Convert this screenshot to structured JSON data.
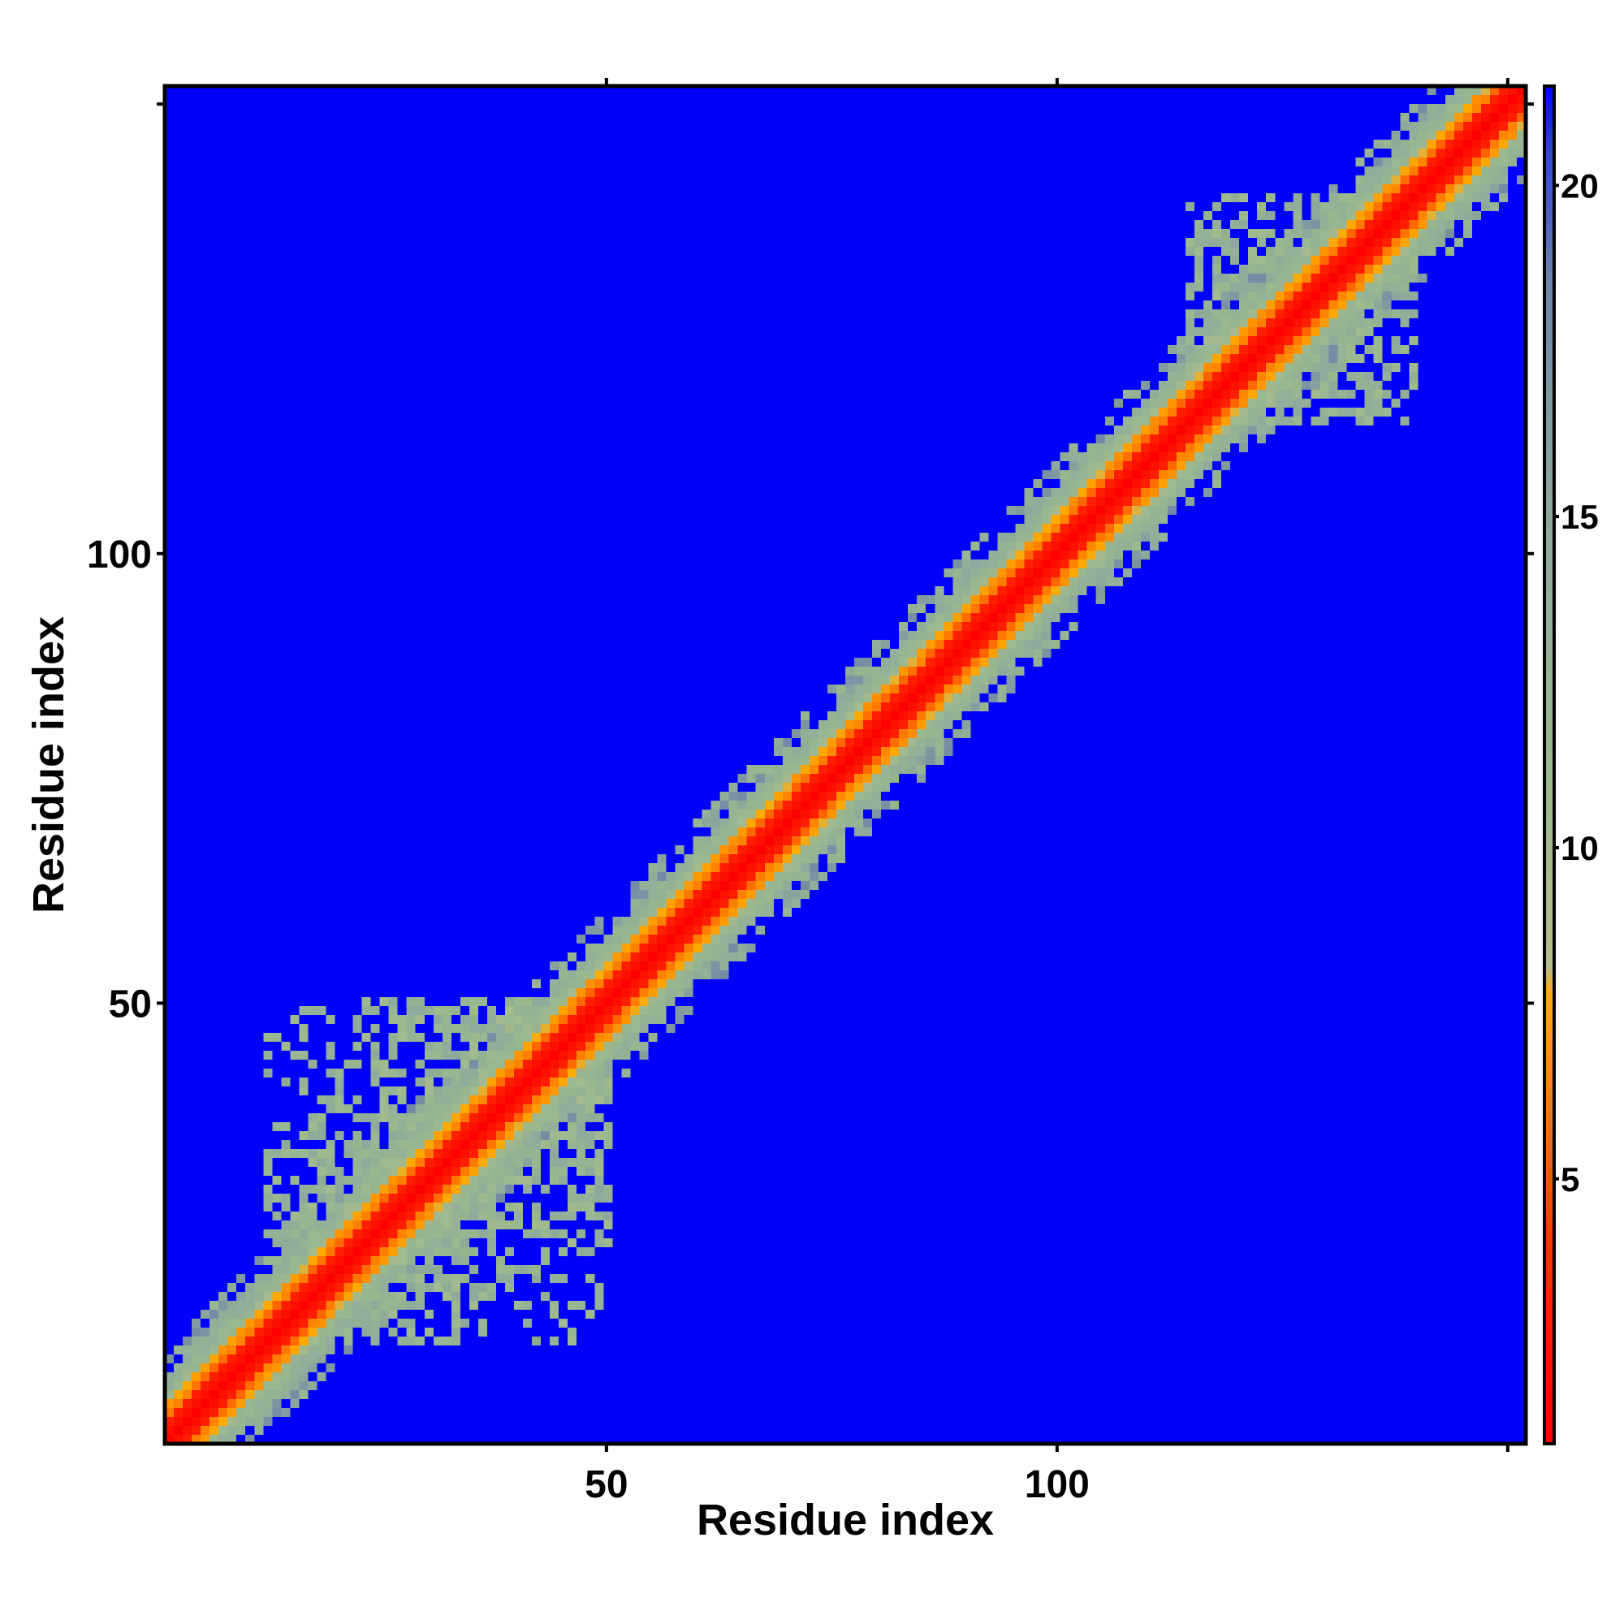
{
  "chart_data": {
    "type": "heatmap",
    "title": "",
    "xlabel": "Residue index",
    "ylabel": "Residue index",
    "xlim": [
      1,
      152
    ],
    "ylim": [
      1,
      152
    ],
    "x_ticks": [
      {
        "value": 50,
        "label": "50"
      },
      {
        "value": 100,
        "label": "100"
      }
    ],
    "y_ticks": [
      {
        "value": 50,
        "label": "50"
      },
      {
        "value": 100,
        "label": "100"
      }
    ],
    "x_minor_ticks": [
      150
    ],
    "y_minor_ticks": [
      150
    ],
    "colorbar": {
      "range": [
        1,
        21.5
      ],
      "ticks": [
        {
          "value": 5,
          "label": "5"
        },
        {
          "value": 10,
          "label": "10"
        },
        {
          "value": 15,
          "label": "15"
        },
        {
          "value": 20,
          "label": "20"
        }
      ],
      "stops": [
        {
          "value": 1,
          "color": "#ff0000"
        },
        {
          "value": 4,
          "color": "#ff3300"
        },
        {
          "value": 6,
          "color": "#ff7700"
        },
        {
          "value": 7.8,
          "color": "#ffaa00"
        },
        {
          "value": 8.2,
          "color": "#b5bb8a"
        },
        {
          "value": 11,
          "color": "#9ab890"
        },
        {
          "value": 15,
          "color": "#8ea89c"
        },
        {
          "value": 18.5,
          "color": "#6f84a8"
        },
        {
          "value": 20.5,
          "color": "#3344d8"
        },
        {
          "value": 21.5,
          "color": "#0000ff"
        }
      ]
    },
    "background_value": 21.5,
    "description_values": {
      "diagonal_distance": 1,
      "near_diagonal_band": [
        4,
        9
      ],
      "contact_regions": [
        {
          "x_range": [
            12,
            50
          ],
          "y_range": [
            12,
            50
          ],
          "value": 11
        },
        {
          "x_range": [
            115,
            140
          ],
          "y_range": [
            115,
            140
          ],
          "value": 11
        }
      ]
    }
  },
  "colors": {
    "background": "#0000ff",
    "frame": "#000000"
  }
}
